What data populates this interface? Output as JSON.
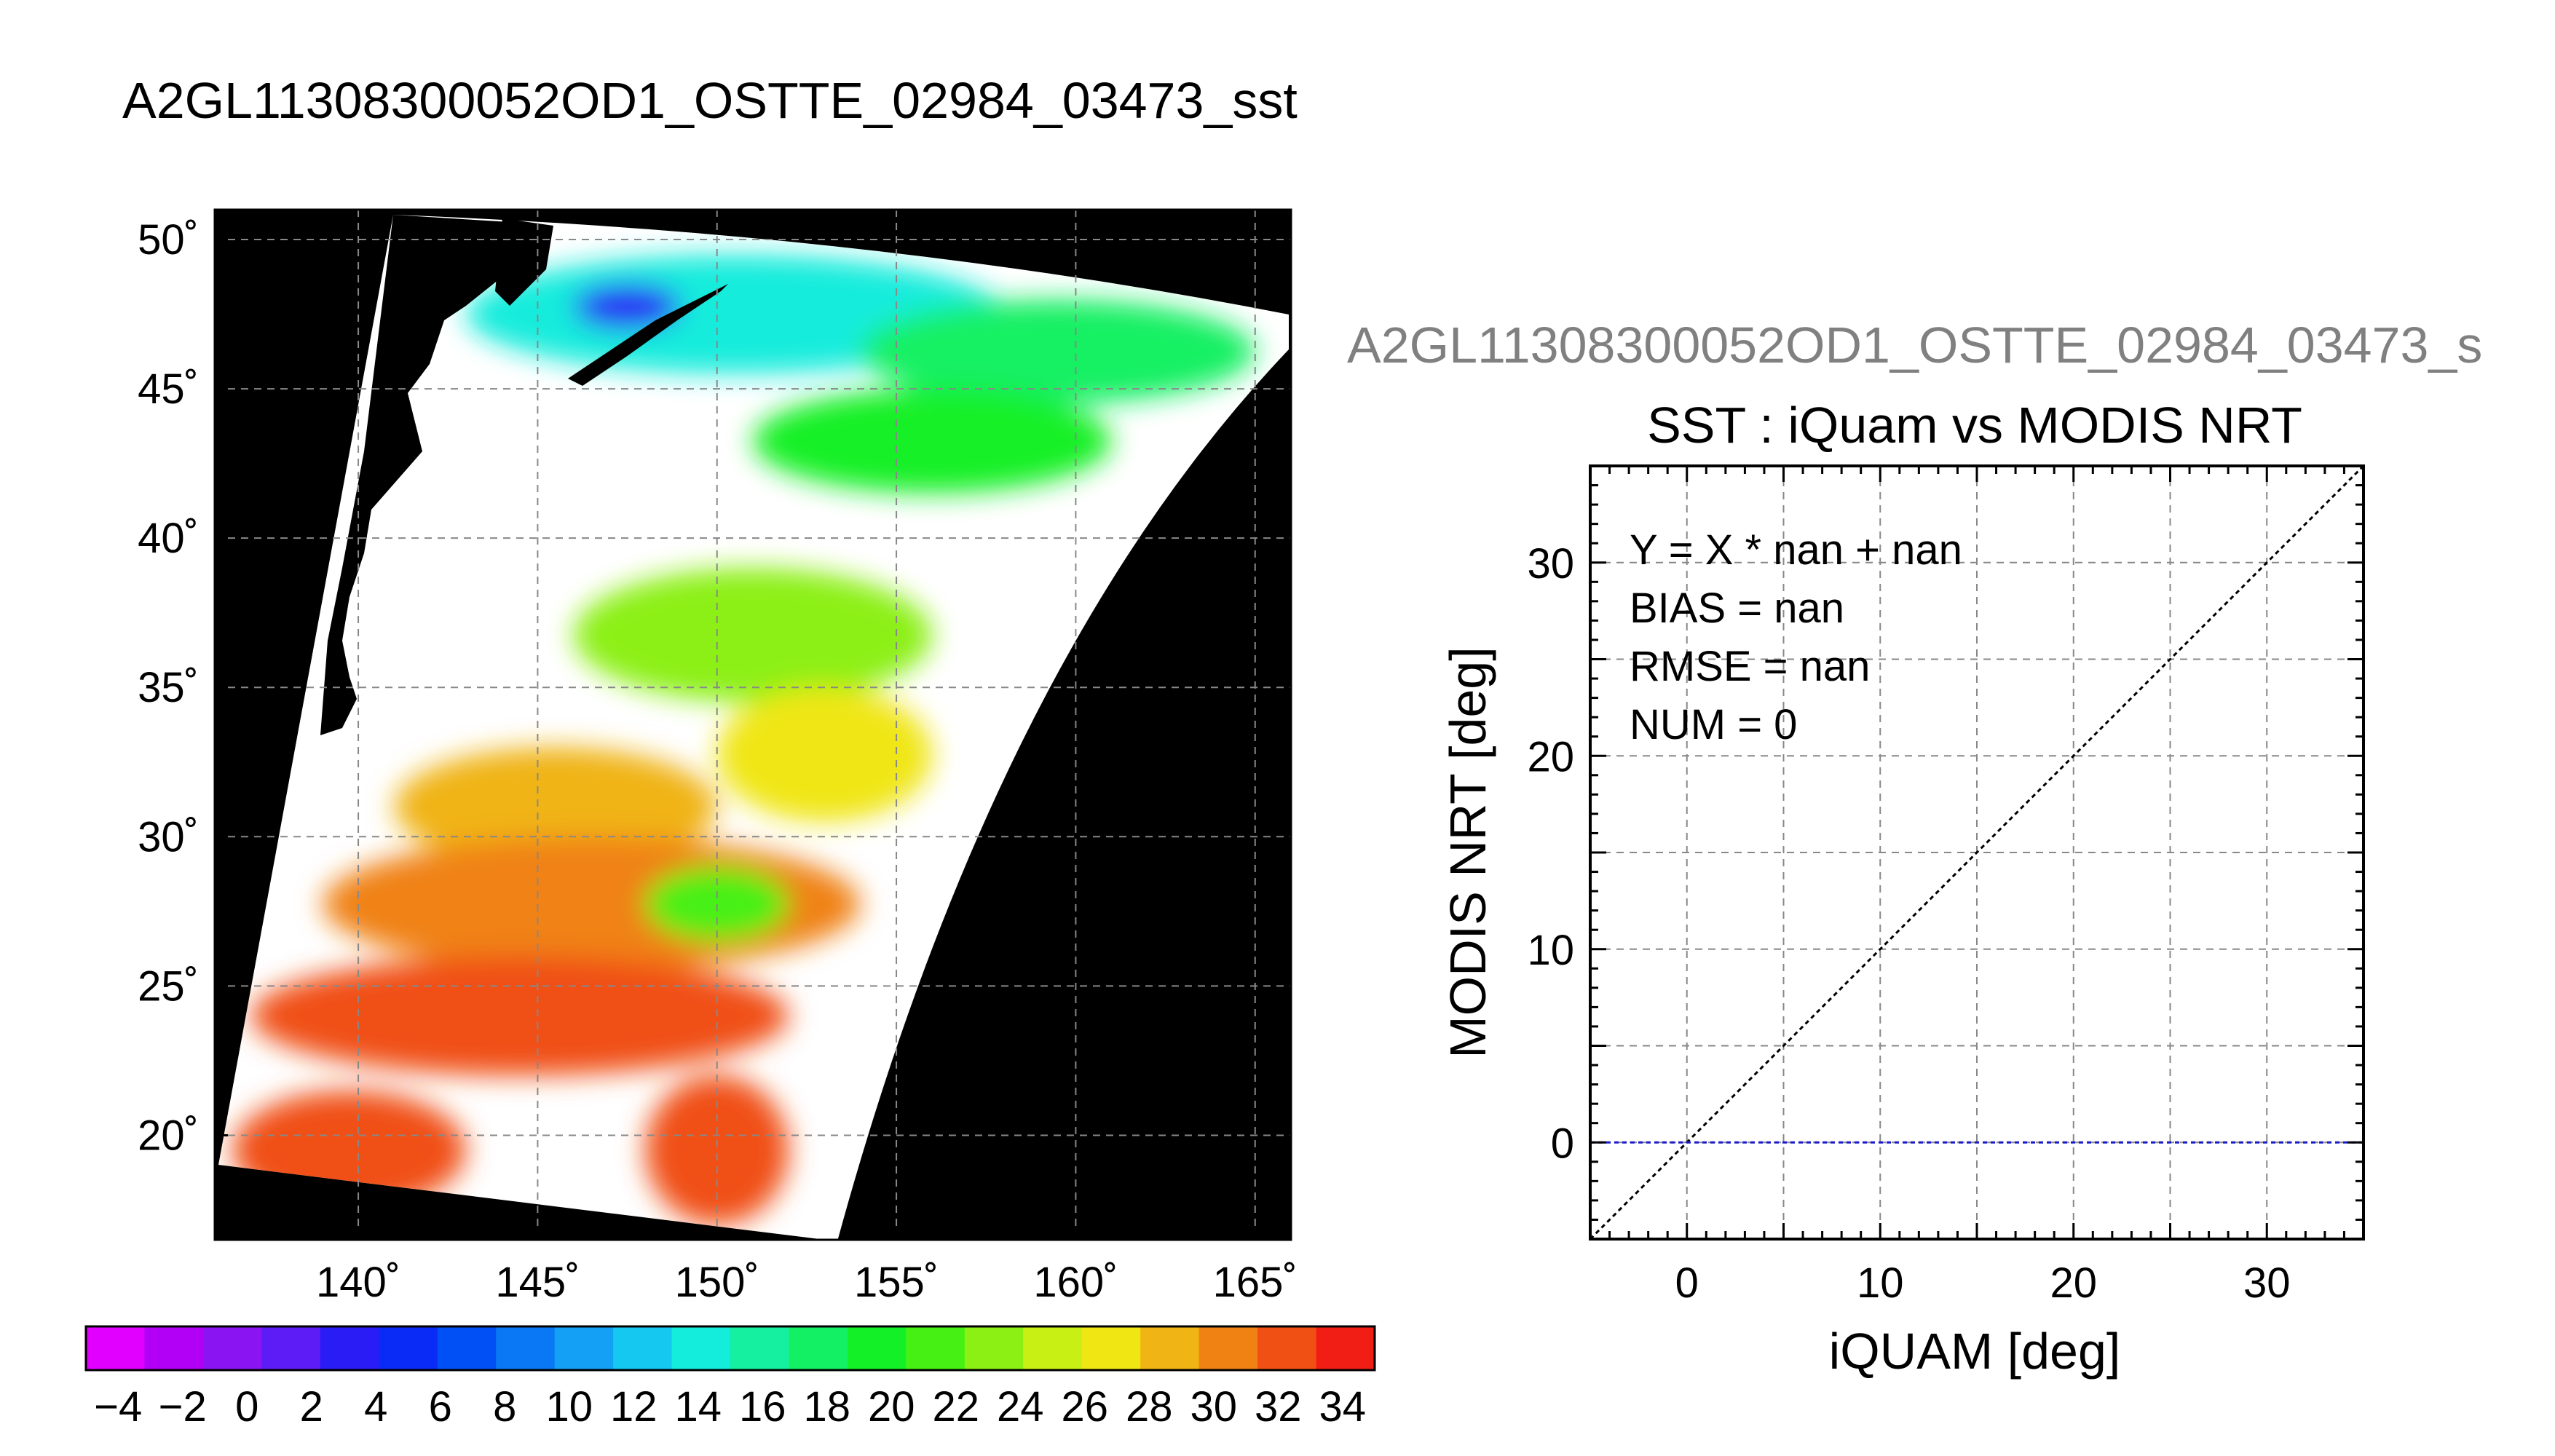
{
  "page": {
    "main_title": "A2GL11308300052OD1_OSTTE_02984_03473_sst",
    "secondary_title": "A2GL11308300052OD1_OSTTE_02984_03473_s"
  },
  "colors": {
    "map_background": "#000000",
    "land_or_cloud": "#ffffff",
    "grid": "#888888",
    "identity_line": "#000000",
    "zero_line": "#1a1acc",
    "secondary_title_color": "#808080"
  },
  "chart_data": [
    {
      "type": "heatmap",
      "title": "A2GL11308300052OD1_OSTTE_02984_03473_sst",
      "x_tick_labels": [
        "140˚",
        "145˚",
        "150˚",
        "155˚",
        "160˚",
        "165˚"
      ],
      "x_ticks": [
        140,
        145,
        150,
        155,
        160,
        165
      ],
      "y_tick_labels": [
        "20˚",
        "25˚",
        "30˚",
        "35˚",
        "40˚",
        "45˚",
        "50˚"
      ],
      "y_ticks": [
        20,
        25,
        30,
        35,
        40,
        45,
        50
      ],
      "xlim": [
        136,
        166
      ],
      "ylim": [
        16.5,
        51
      ],
      "grid": true,
      "sst_regions": [
        {
          "lon": [
            143,
            158
          ],
          "lat": [
            45.5,
            49.5
          ],
          "value": 14
        },
        {
          "lon": [
            146,
            149
          ],
          "lat": [
            47,
            48.5
          ],
          "value": 4
        },
        {
          "lon": [
            154,
            165
          ],
          "lat": [
            44.5,
            48
          ],
          "value": 17
        },
        {
          "lon": [
            151,
            161
          ],
          "lat": [
            41.5,
            45
          ],
          "value": 20
        },
        {
          "lon": [
            146,
            156
          ],
          "lat": [
            34.5,
            39
          ],
          "value": 23
        },
        {
          "lon": [
            150,
            156
          ],
          "lat": [
            30.5,
            35
          ],
          "value": 27
        },
        {
          "lon": [
            141,
            150
          ],
          "lat": [
            29,
            33
          ],
          "value": 29
        },
        {
          "lon": [
            139,
            154
          ],
          "lat": [
            25.5,
            30
          ],
          "value": 30
        },
        {
          "lon": [
            137,
            152
          ],
          "lat": [
            22,
            26
          ],
          "value": 32
        },
        {
          "lon": [
            136.5,
            143
          ],
          "lat": [
            17.5,
            21.5
          ],
          "value": 33
        },
        {
          "lon": [
            148,
            152
          ],
          "lat": [
            17,
            22
          ],
          "value": 33
        },
        {
          "lon": [
            148,
            152
          ],
          "lat": [
            26.5,
            29
          ],
          "value": 21
        }
      ],
      "colorbar": {
        "range": [
          -5,
          35
        ],
        "tick_labels": [
          "−4",
          "−2",
          "0",
          "2",
          "4",
          "6",
          "8",
          "10",
          "12",
          "14",
          "16",
          "18",
          "20",
          "22",
          "24",
          "26",
          "28",
          "30",
          "32",
          "34"
        ],
        "ticks": [
          -4,
          -2,
          0,
          2,
          4,
          6,
          8,
          10,
          12,
          14,
          16,
          18,
          20,
          22,
          24,
          26,
          28,
          30,
          32,
          34
        ],
        "colors": [
          "#e100ff",
          "#b100f5",
          "#8a15f2",
          "#5d1cf5",
          "#2a1cf5",
          "#0a2af5",
          "#0050f5",
          "#0a78f5",
          "#14a0f5",
          "#14c8f0",
          "#14ecdc",
          "#14f0a0",
          "#14f064",
          "#14f028",
          "#46f014",
          "#8cf014",
          "#c8f014",
          "#f0e614",
          "#f0b414",
          "#f08214",
          "#f05014",
          "#f01e14"
        ]
      }
    },
    {
      "type": "scatter",
      "title": "SST : iQuam vs MODIS NRT",
      "xlabel": "iQUAM [deg]",
      "ylabel": "MODIS NRT [deg]",
      "xlim": [
        -5,
        35
      ],
      "ylim": [
        -5,
        35
      ],
      "x_ticks": [
        0,
        10,
        20,
        30
      ],
      "y_ticks": [
        0,
        10,
        20,
        30
      ],
      "x_tick_labels": [
        "0",
        "10",
        "20",
        "30"
      ],
      "y_tick_labels": [
        "0",
        "10",
        "20",
        "30"
      ],
      "grid": true,
      "points": [],
      "identity_line": [
        [
          -5,
          -5
        ],
        [
          35,
          35
        ]
      ],
      "zero_line_y": 0,
      "stats": [
        "Y = X * nan + nan",
        "BIAS = nan",
        "RMSE = nan",
        "NUM = 0"
      ]
    }
  ]
}
